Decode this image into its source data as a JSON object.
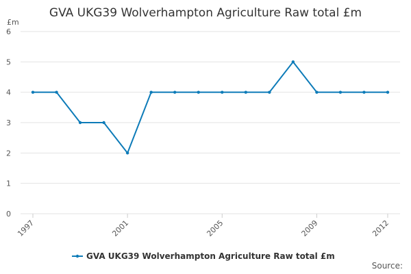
{
  "chart_data": {
    "type": "line",
    "title": "GVA UKG39 Wolverhampton Agriculture Raw total £m",
    "y_label": "£m",
    "source": "Source:",
    "x": [
      1997,
      1998,
      1999,
      2000,
      2001,
      2002,
      2003,
      2004,
      2005,
      2006,
      2007,
      2008,
      2009,
      2010,
      2011,
      2012
    ],
    "series": [
      {
        "name": "GVA UKG39 Wolverhampton Agriculture Raw total £m",
        "color": "#0d7bb8",
        "values": [
          4,
          4,
          3,
          3,
          2,
          4,
          4,
          4,
          4,
          4,
          4,
          5,
          4,
          4,
          4,
          4
        ]
      }
    ],
    "xlim": [
      1997,
      2012
    ],
    "xticks": [
      1997,
      2001,
      2005,
      2009,
      2012
    ],
    "ylim": [
      0,
      6
    ],
    "yticks": [
      0,
      1,
      2,
      3,
      4,
      5,
      6
    ],
    "grid": true,
    "legend": "bottom"
  }
}
